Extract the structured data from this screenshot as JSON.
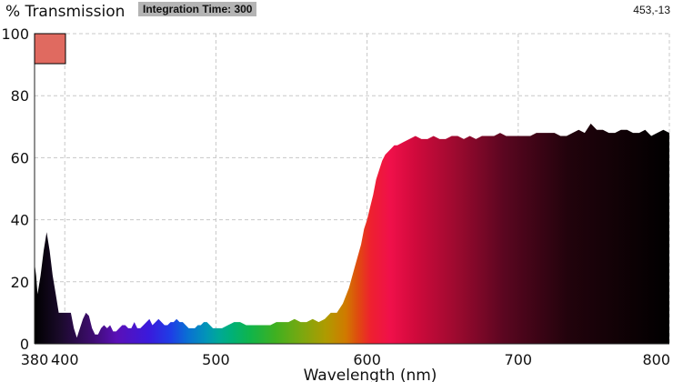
{
  "header": {
    "ylabel": "% Transmission",
    "integration_label": "Integration Time: 300",
    "cursor_readout": "453,-13"
  },
  "legend_swatch_color": "#e06a60",
  "chart_data": {
    "type": "area",
    "xlabel": "Wavelength (nm)",
    "ylabel": "% Transmission",
    "xlim": [
      380,
      800
    ],
    "ylim": [
      0,
      100
    ],
    "grid": true,
    "fill": "visible-spectrum gradient",
    "x_ticks": [
      {
        "value": 380,
        "label": "380"
      },
      {
        "value": 400,
        "label": "400"
      },
      {
        "value": 500,
        "label": "500"
      },
      {
        "value": 600,
        "label": "600"
      },
      {
        "value": 700,
        "label": "700"
      },
      {
        "value": 800,
        "label": "800"
      }
    ],
    "y_ticks": [
      {
        "value": 0,
        "label": "0"
      },
      {
        "value": 20,
        "label": "20"
      },
      {
        "value": 40,
        "label": "40"
      },
      {
        "value": 60,
        "label": "60"
      },
      {
        "value": 80,
        "label": "80"
      },
      {
        "value": 100,
        "label": "100"
      }
    ],
    "x": [
      380,
      381,
      382,
      384,
      386,
      388,
      390,
      392,
      394,
      396,
      398,
      400,
      404,
      406,
      408,
      410,
      412,
      414,
      416,
      418,
      420,
      422,
      424,
      426,
      428,
      430,
      432,
      434,
      436,
      438,
      440,
      442,
      444,
      446,
      448,
      450,
      452,
      454,
      456,
      458,
      460,
      462,
      464,
      466,
      468,
      470,
      472,
      474,
      476,
      478,
      480,
      482,
      484,
      486,
      488,
      490,
      492,
      494,
      496,
      498,
      500,
      504,
      508,
      512,
      516,
      520,
      524,
      528,
      532,
      536,
      540,
      544,
      548,
      552,
      556,
      560,
      564,
      568,
      572,
      576,
      580,
      584,
      588,
      592,
      596,
      598,
      600,
      602,
      604,
      606,
      608,
      610,
      612,
      614,
      616,
      618,
      620,
      624,
      628,
      632,
      636,
      640,
      644,
      648,
      652,
      656,
      660,
      664,
      668,
      672,
      676,
      680,
      684,
      688,
      692,
      696,
      700,
      704,
      708,
      712,
      716,
      720,
      724,
      728,
      732,
      736,
      740,
      744,
      748,
      752,
      756,
      760,
      764,
      768,
      772,
      776,
      780,
      784,
      788,
      792,
      796,
      800
    ],
    "y": [
      26,
      22,
      16,
      22,
      30,
      36,
      30,
      22,
      16,
      10,
      10,
      10,
      10,
      5,
      2,
      5,
      8,
      10,
      9,
      5,
      3,
      3,
      5,
      6,
      5,
      6,
      4,
      4,
      5,
      6,
      6,
      5,
      5,
      7,
      5,
      5,
      6,
      7,
      8,
      6,
      7,
      8,
      7,
      6,
      6,
      7,
      7,
      8,
      7,
      7,
      6,
      5,
      5,
      5,
      6,
      6,
      7,
      7,
      6,
      5,
      5,
      5,
      6,
      7,
      7,
      6,
      6,
      6,
      6,
      6,
      7,
      7,
      7,
      8,
      7,
      7,
      8,
      7,
      8,
      10,
      10,
      13,
      18,
      25,
      32,
      37,
      40,
      44,
      48,
      53,
      56,
      59,
      61,
      62,
      63,
      64,
      64,
      65,
      66,
      67,
      66,
      66,
      67,
      66,
      66,
      67,
      67,
      66,
      67,
      66,
      67,
      67,
      67,
      68,
      67,
      67,
      67,
      67,
      67,
      68,
      68,
      68,
      68,
      67,
      67,
      68,
      69,
      68,
      71,
      69,
      69,
      68,
      68,
      69,
      69,
      68,
      68,
      69,
      67,
      68,
      69,
      68
    ]
  }
}
